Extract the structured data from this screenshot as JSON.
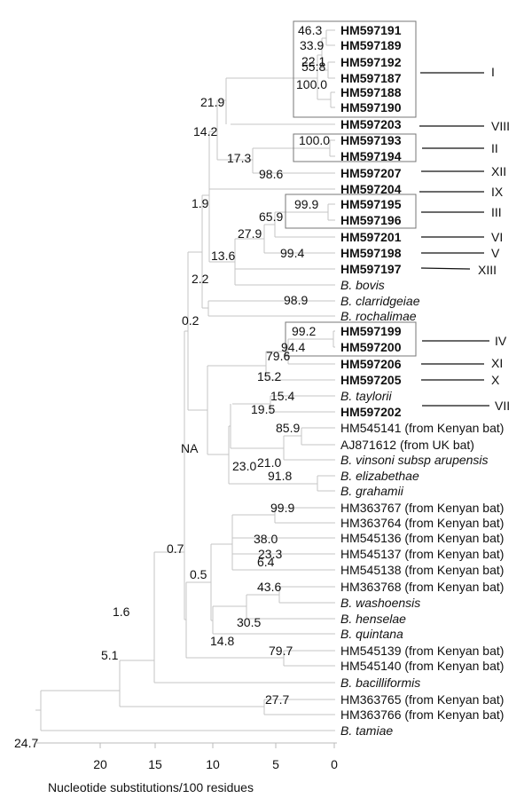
{
  "axis": {
    "title": "Nucleotide substitutions/100 residues",
    "ticks": [
      "20",
      "15",
      "10",
      "5",
      "0"
    ]
  },
  "leaves": [
    {
      "label": "HM597191",
      "bold": true
    },
    {
      "label": "HM597189",
      "bold": true
    },
    {
      "label": "HM597192",
      "bold": true
    },
    {
      "label": "HM597187",
      "bold": true
    },
    {
      "label": "HM597188",
      "bold": true
    },
    {
      "label": "HM597190",
      "bold": true
    },
    {
      "label": "HM597203",
      "bold": true
    },
    {
      "label": "HM597193",
      "bold": true
    },
    {
      "label": "HM597194",
      "bold": true
    },
    {
      "label": "HM597207",
      "bold": true
    },
    {
      "label": "HM597204",
      "bold": true
    },
    {
      "label": "HM597195",
      "bold": true
    },
    {
      "label": "HM597196",
      "bold": true
    },
    {
      "label": "HM597201",
      "bold": true
    },
    {
      "label": "HM597198",
      "bold": true
    },
    {
      "label": "HM597197",
      "bold": true
    },
    {
      "label": "B. bovis",
      "italic": true
    },
    {
      "label": "B. clarridgeiae",
      "italic": true
    },
    {
      "label": "B. rochalimae",
      "italic": true
    },
    {
      "label": "HM597199",
      "bold": true
    },
    {
      "label": "HM597200",
      "bold": true
    },
    {
      "label": "HM597206",
      "bold": true
    },
    {
      "label": "HM597205",
      "bold": true
    },
    {
      "label": "B. taylorii",
      "italic": true
    },
    {
      "label": "HM597202",
      "bold": true
    },
    {
      "label": "HM545141 (from Kenyan bat)"
    },
    {
      "label": "AJ871612 (from UK bat)"
    },
    {
      "label": "B. vinsoni subsp arupensis",
      "italic": true
    },
    {
      "label": "B. elizabethae",
      "italic": true
    },
    {
      "label": "B. grahamii",
      "italic": true
    },
    {
      "label": "HM363767 (from Kenyan bat)"
    },
    {
      "label": "HM363764 (from Kenyan bat)"
    },
    {
      "label": "HM545136 (from Kenyan bat)"
    },
    {
      "label": "HM545137 (from Kenyan bat)"
    },
    {
      "label": "HM545138 (from Kenyan bat)"
    },
    {
      "label": "HM363768 (from Kenyan bat)"
    },
    {
      "label": "B. washoensis",
      "italic": true
    },
    {
      "label": "B. henselae",
      "italic": true
    },
    {
      "label": "B. quintana",
      "italic": true
    },
    {
      "label": "HM545139 (from Kenyan bat)"
    },
    {
      "label": "HM545140 (from Kenyan bat)"
    },
    {
      "label": "B. bacilliformis",
      "italic": true
    },
    {
      "label": "HM363765 (from Kenyan bat)"
    },
    {
      "label": "HM363766 (from Kenyan bat)"
    },
    {
      "label": "B. tamiae",
      "italic": true
    }
  ],
  "support_values": [
    "46.3",
    "33.9",
    "22.1",
    "55.8",
    "100.0",
    "21.9",
    "14.2",
    "100.0",
    "17.3",
    "98.6",
    "1.9",
    "99.9",
    "65.9",
    "27.9",
    "99.4",
    "13.6",
    "2.2",
    "98.9",
    "0.2",
    "99.2",
    "94.4",
    "79.6",
    "15.2",
    "15.4",
    "19.5",
    "85.9",
    "21.0",
    "23.0",
    "91.8",
    "NA",
    "99.9",
    "38.0",
    "6.4",
    "0.7",
    "23.3",
    "0.5",
    "43.6",
    "30.5",
    "1.6",
    "14.8",
    "5.1",
    "79.7",
    "27.7",
    "24.7"
  ],
  "groups": [
    "I",
    "VIII",
    "II",
    "XII",
    "IX",
    "III",
    "VI",
    "V",
    "XIII",
    "IV",
    "XI",
    "X",
    "VII"
  ]
}
